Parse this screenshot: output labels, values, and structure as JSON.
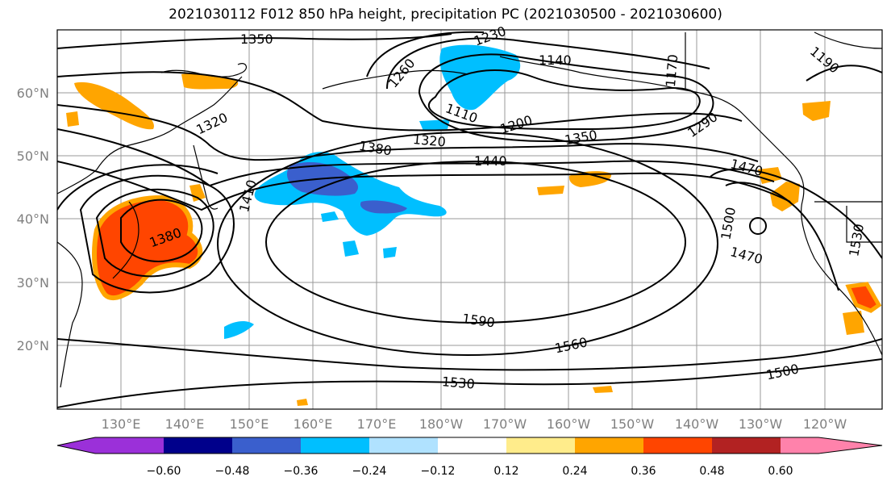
{
  "title": "2021030112 F012 850 hPa height, precipitation PC (2021030500 - 2021030600)",
  "map": {
    "lon_ticks": [
      "130°E",
      "140°E",
      "150°E",
      "160°E",
      "170°E",
      "180°W",
      "170°W",
      "160°W",
      "150°W",
      "140°W",
      "130°W",
      "120°W"
    ],
    "lat_ticks": [
      "60°N",
      "50°N",
      "40°N",
      "30°N",
      "20°N"
    ],
    "contour_labels": [
      "1350",
      "1230",
      "1140",
      "1260",
      "1110",
      "1200",
      "1170",
      "1320",
      "1380",
      "1320",
      "1440",
      "1350",
      "1290",
      "1190",
      "1410",
      "1380",
      "1470",
      "1500",
      "1470",
      "1530",
      "1590",
      "1560",
      "1530",
      "1500"
    ],
    "height_contours_hpa_units": "gpm",
    "positive_color": "#ff4500",
    "negative_color": "#00bfff"
  },
  "colorbar": {
    "ticks": [
      "−0.60",
      "−0.48",
      "−0.36",
      "−0.24",
      "−0.12",
      "0.12",
      "0.24",
      "0.36",
      "0.48",
      "0.60"
    ],
    "colors": [
      "#9b30d9",
      "#00008b",
      "#3a5fcd",
      "#00bfff",
      "#b0e2ff",
      "#ffffff",
      "#ffec8b",
      "#ffa500",
      "#ff4500",
      "#b22222",
      "#ff82ab"
    ]
  }
}
